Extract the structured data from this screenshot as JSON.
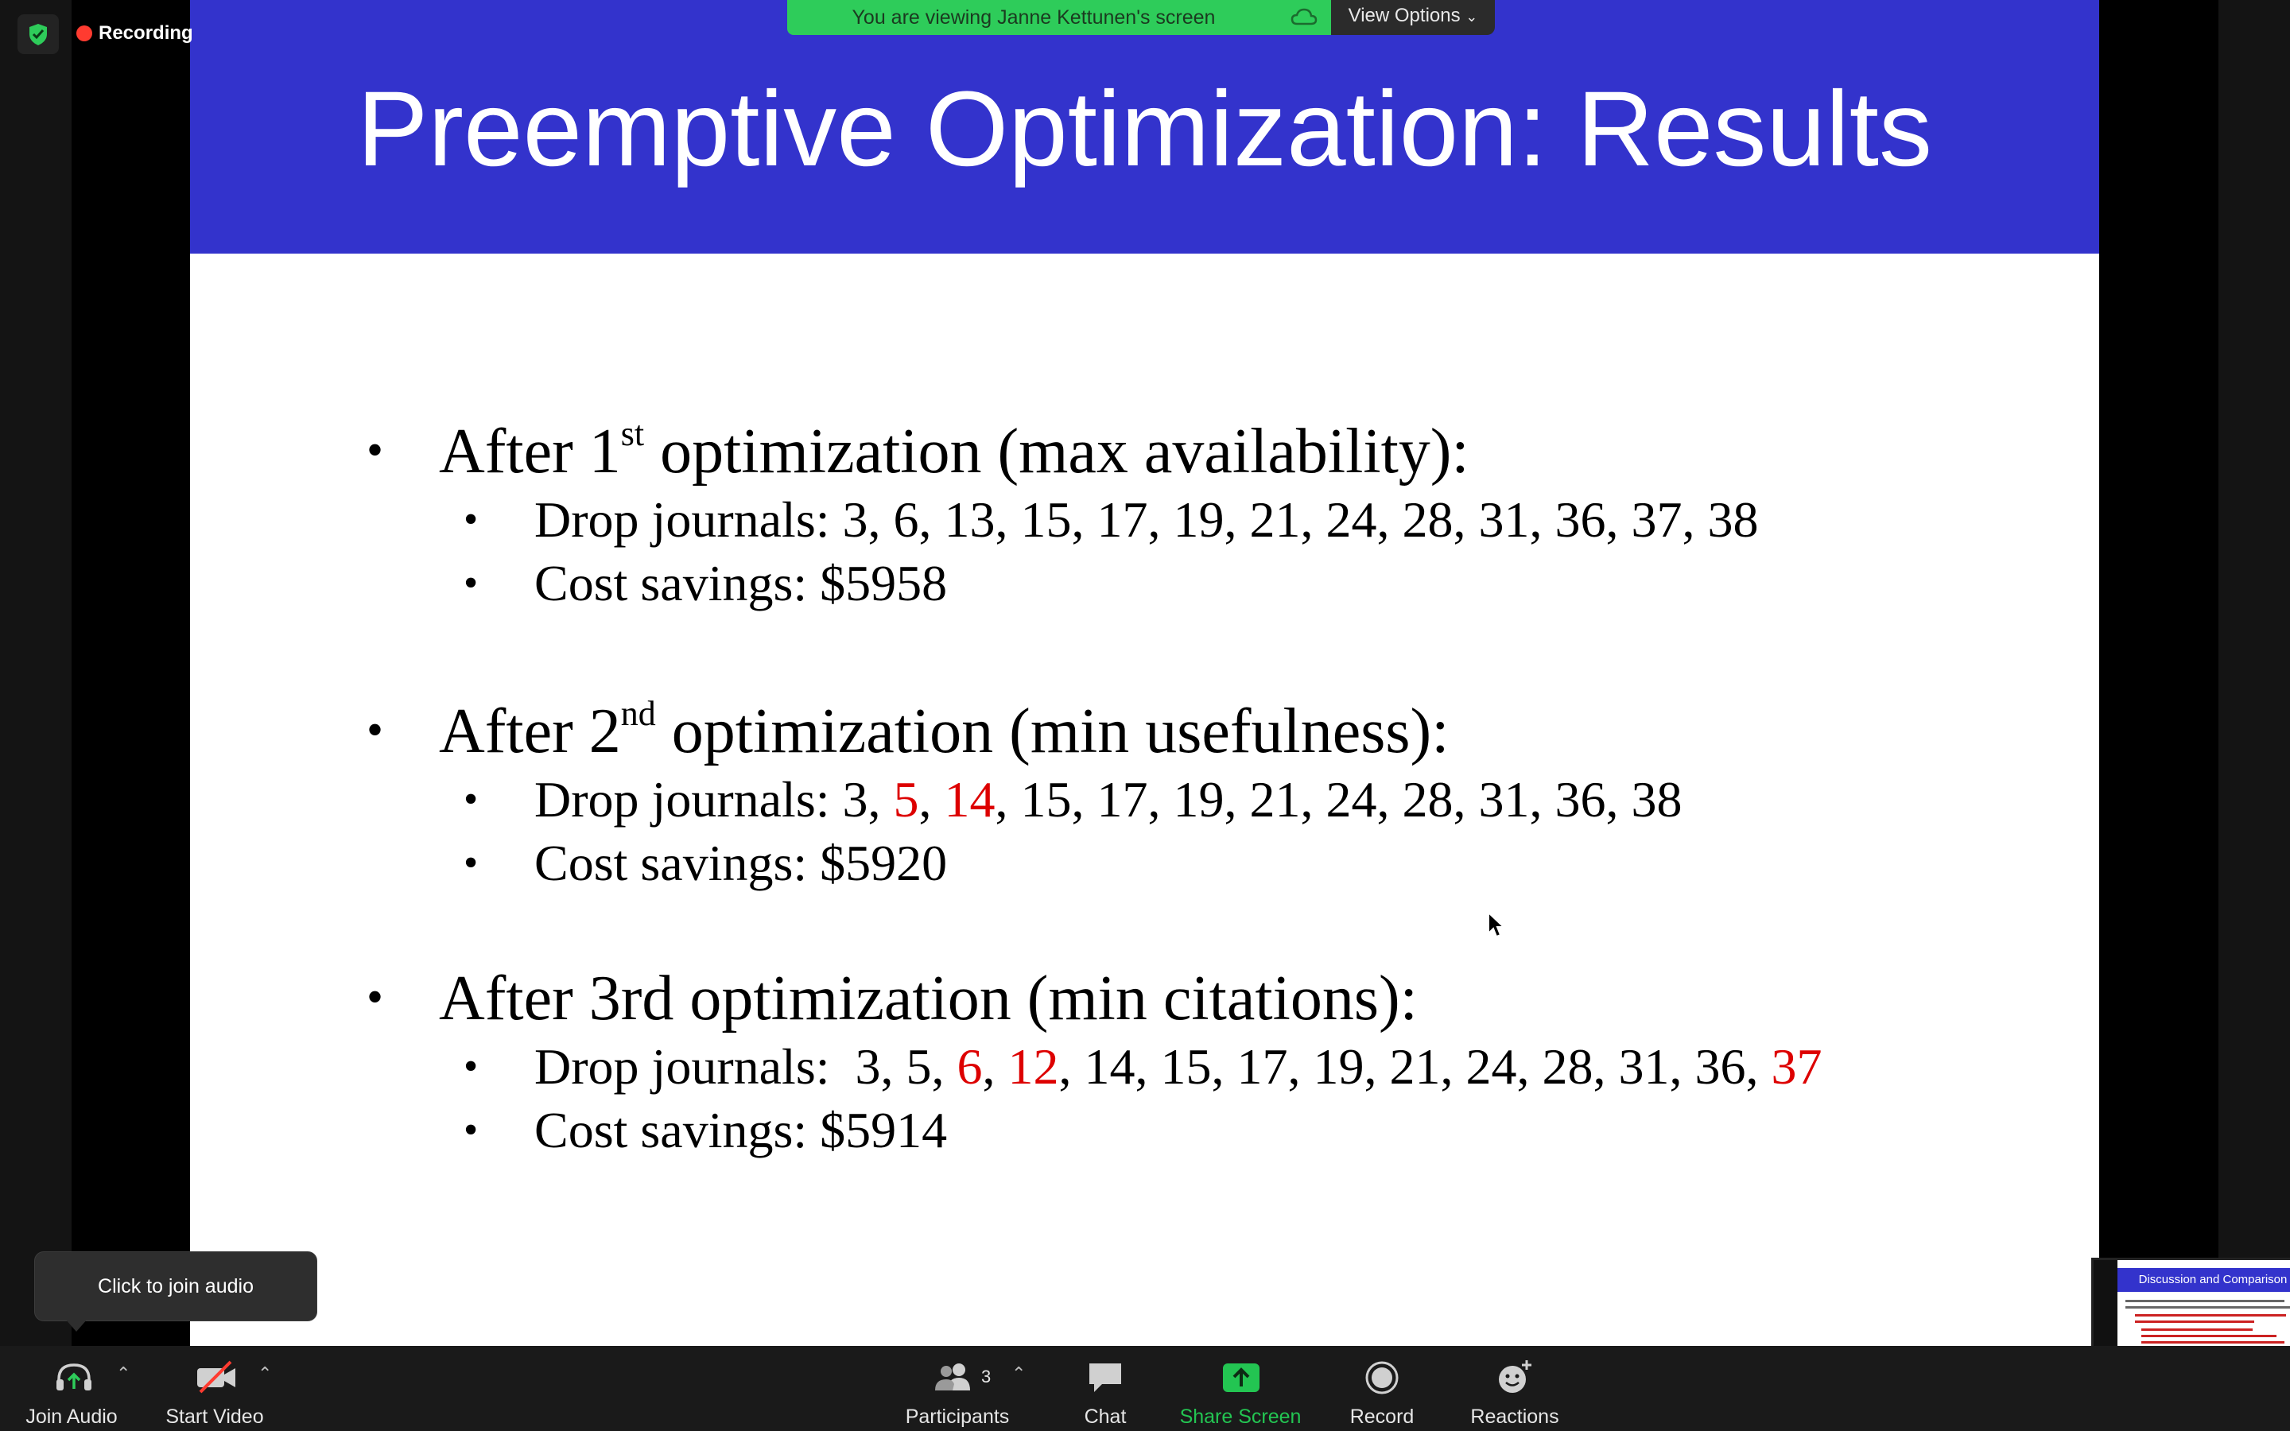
{
  "recording": {
    "label": "Recording"
  },
  "banner": {
    "viewing_text": "You are viewing Janne Kettunen's screen",
    "view_options_label": "View Options"
  },
  "slide": {
    "title": "Preemptive Optimization: Results",
    "sections": [
      {
        "heading_pre": "After 1",
        "heading_sup": "st",
        "heading_post": " optimization (max availability):",
        "drop_prefix": "Drop journals: ",
        "drop_text": "3, 6, 13, 15, 17, 19, 21, 24, 28, 31, 36, 37, 38",
        "savings": "Cost savings: $5958"
      },
      {
        "heading_pre": "After 2",
        "heading_sup": "nd",
        "heading_post": " optimization (min usefulness):",
        "drop_prefix": "Drop journals: ",
        "drop_parts": [
          "3, ",
          "5",
          ", ",
          "14",
          ", 15, 17, 19, 21, 24, 28, 31, 36, 38"
        ],
        "savings": "Cost savings: $5920"
      },
      {
        "heading": "After 3rd optimization (min citations):",
        "drop_prefix": "Drop journals:  ",
        "drop_parts": [
          "3, 5, ",
          "6",
          ", ",
          "12",
          ", 14, 15, 17, 19, 21, 24, 28, 31, 36, ",
          "37"
        ],
        "savings": "Cost savings: $5914"
      }
    ],
    "bullet": "•"
  },
  "tooltip": {
    "text": "Click to join audio"
  },
  "toolbar": {
    "join_audio": "Join Audio",
    "start_video": "Start Video",
    "participants": "Participants",
    "participants_count": "3",
    "chat": "Chat",
    "share_screen": "Share Screen",
    "record": "Record",
    "reactions": "Reactions"
  },
  "thumbnail": {
    "title": "Discussion and Comparison"
  },
  "colors": {
    "slide_header": "#3333cc",
    "highlight_red": "#dd0000",
    "banner_green": "#2ecc5a",
    "share_green": "#23c552",
    "recording_red": "#ff3b30"
  }
}
